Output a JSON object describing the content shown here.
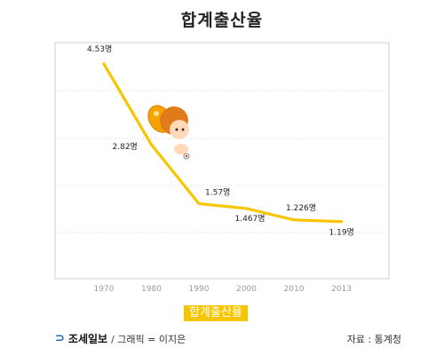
{
  "title": "합계출산율",
  "chart_data": {
    "type": "line",
    "title": "합계출산율",
    "x": [
      "1970",
      "1980",
      "1990",
      "2000",
      "2010",
      "2013"
    ],
    "series": [
      {
        "name": "합계출산율",
        "values": [
          4.53,
          2.82,
          1.57,
          1.467,
          1.226,
          1.19
        ]
      }
    ],
    "data_labels": [
      "4.53명",
      "2.82명",
      "1.57명",
      "1.467명",
      "1.226명",
      "1.19명"
    ],
    "xlabel": "",
    "ylabel": "",
    "grid": true,
    "legend": "bottom-center",
    "line_color": "#f7c600"
  },
  "legend_label": "합계출산율",
  "footer": {
    "logo_text": "조세일보",
    "credit": "/ 그래픽 = 이지은",
    "source": "자료 : 통계청"
  }
}
